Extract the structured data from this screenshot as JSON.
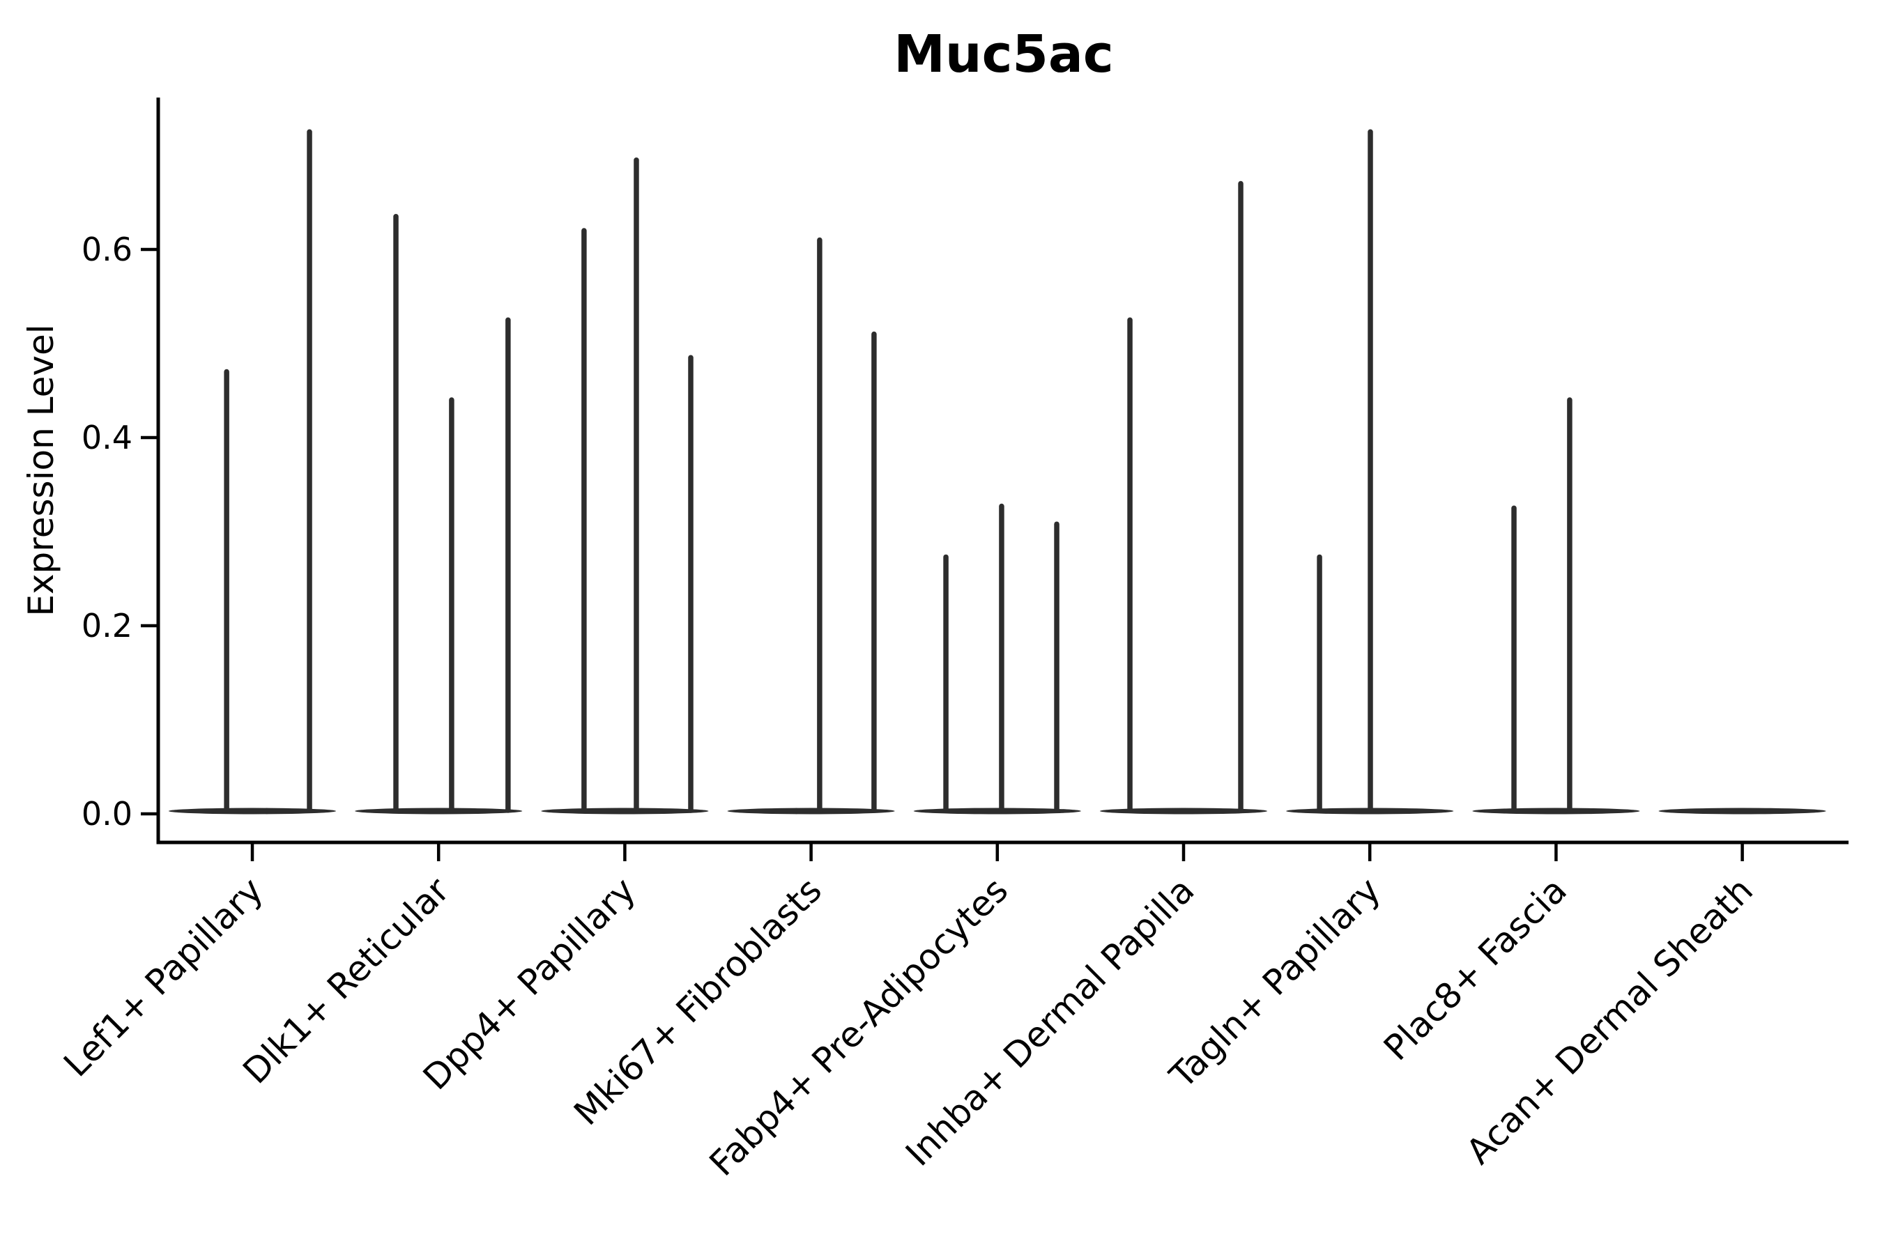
{
  "chart_data": {
    "type": "violin",
    "title": "Muc5ac",
    "ylabel": "Expression Level",
    "xlabel": "",
    "legend": "none",
    "grid": false,
    "ylim": [
      -0.03,
      0.761
    ],
    "ytick_values": [
      0.0,
      0.2,
      0.4,
      0.6
    ],
    "ytick_labels": [
      "0.0",
      "0.2",
      "0.4",
      "0.6"
    ],
    "categories": [
      "Lef1+ Papillary",
      "Dlk1+ Reticular",
      "Dpp4+ Papillary",
      "Mki67+ Fibroblasts",
      "Fabp4+ Pre-Adipocytes",
      "Inhba+ Dermal Papilla",
      "Tagln+ Papillary",
      "Plac8+ Fascia",
      "Acan+ Dermal Sheath"
    ],
    "series": [
      {
        "category": "Lef1+ Papillary",
        "zero_body": true,
        "peaks": [
          {
            "offset": -0.138,
            "value": 0.47
          },
          {
            "offset": 0.307,
            "value": 0.725
          }
        ]
      },
      {
        "category": "Dlk1+ Reticular",
        "zero_body": true,
        "peaks": [
          {
            "offset": -0.229,
            "value": 0.635
          },
          {
            "offset": 0.07,
            "value": 0.44
          },
          {
            "offset": 0.373,
            "value": 0.525
          }
        ]
      },
      {
        "category": "Dpp4+ Papillary",
        "zero_body": true,
        "peaks": [
          {
            "offset": -0.219,
            "value": 0.62
          },
          {
            "offset": 0.062,
            "value": 0.695
          },
          {
            "offset": 0.354,
            "value": 0.485
          }
        ]
      },
      {
        "category": "Mki67+ Fibroblasts",
        "zero_body": true,
        "peaks": [
          {
            "offset": 0.046,
            "value": 0.61
          },
          {
            "offset": 0.338,
            "value": 0.51
          }
        ]
      },
      {
        "category": "Fabp4+ Pre-Adipocytes",
        "zero_body": true,
        "peaks": [
          {
            "offset": -0.276,
            "value": 0.273
          },
          {
            "offset": 0.023,
            "value": 0.327
          },
          {
            "offset": 0.319,
            "value": 0.308
          }
        ]
      },
      {
        "category": "Inhba+ Dermal Papilla",
        "zero_body": true,
        "peaks": [
          {
            "offset": -0.288,
            "value": 0.525
          },
          {
            "offset": 0.307,
            "value": 0.67
          }
        ]
      },
      {
        "category": "Tagln+ Papillary",
        "zero_body": true,
        "peaks": [
          {
            "offset": -0.27,
            "value": 0.273
          },
          {
            "offset": 0.003,
            "value": 0.725
          }
        ]
      },
      {
        "category": "Plac8+ Fascia",
        "zero_body": true,
        "peaks": [
          {
            "offset": -0.226,
            "value": 0.325
          },
          {
            "offset": 0.073,
            "value": 0.44
          }
        ]
      },
      {
        "category": "Acan+ Dermal Sheath",
        "zero_body": true,
        "peaks": []
      }
    ],
    "colors": {
      "violin": "#2d2d2d",
      "axis": "#000000",
      "text": "#000000",
      "background": "#ffffff"
    }
  }
}
